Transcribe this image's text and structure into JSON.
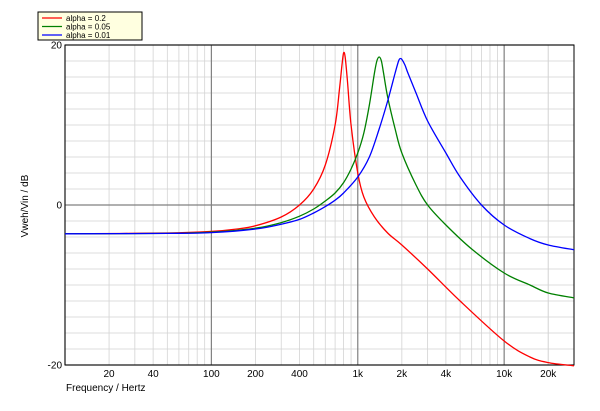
{
  "chart_data": {
    "type": "line",
    "xlabel": "Frequency / Hertz",
    "ylabel": "Vweh/Vin / dB",
    "x_scale": "log",
    "xlim": [
      10,
      30000
    ],
    "ylim": [
      -20,
      20
    ],
    "x_ticks": [
      {
        "value": 20,
        "label": "20"
      },
      {
        "value": 40,
        "label": "40"
      },
      {
        "value": 100,
        "label": "100"
      },
      {
        "value": 200,
        "label": "200"
      },
      {
        "value": 400,
        "label": "400"
      },
      {
        "value": 1000,
        "label": "1k"
      },
      {
        "value": 2000,
        "label": "2k"
      },
      {
        "value": 4000,
        "label": "4k"
      },
      {
        "value": 10000,
        "label": "10k"
      },
      {
        "value": 20000,
        "label": "20k"
      }
    ],
    "y_ticks": [
      {
        "value": 20,
        "label": "20"
      },
      {
        "value": 0,
        "label": "0"
      },
      {
        "value": -20,
        "label": "-20"
      }
    ],
    "grid": true,
    "legend_position": "top-left",
    "series": [
      {
        "name": "alpha = 0.2",
        "color": "#ff0000",
        "points": [
          [
            10,
            -3.6
          ],
          [
            50,
            -3.5
          ],
          [
            100,
            -3.3
          ],
          [
            150,
            -3.0
          ],
          [
            200,
            -2.6
          ],
          [
            300,
            -1.5
          ],
          [
            400,
            0.0
          ],
          [
            500,
            2.0
          ],
          [
            600,
            5.0
          ],
          [
            700,
            10.0
          ],
          [
            750,
            14.5
          ],
          [
            780,
            17.5
          ],
          [
            800,
            19.0
          ],
          [
            820,
            18.5
          ],
          [
            850,
            15.5
          ],
          [
            900,
            10.0
          ],
          [
            1000,
            4.0
          ],
          [
            1100,
            1.0
          ],
          [
            1300,
            -1.5
          ],
          [
            1600,
            -3.5
          ],
          [
            2000,
            -5.0
          ],
          [
            3000,
            -8.0
          ],
          [
            5000,
            -12.0
          ],
          [
            10000,
            -17.0
          ],
          [
            15000,
            -19.0
          ],
          [
            20000,
            -19.7
          ],
          [
            30000,
            -20.1
          ]
        ]
      },
      {
        "name": "alpha = 0.05",
        "color": "#008000",
        "points": [
          [
            10,
            -3.6
          ],
          [
            50,
            -3.55
          ],
          [
            100,
            -3.4
          ],
          [
            200,
            -2.9
          ],
          [
            300,
            -2.2
          ],
          [
            400,
            -1.4
          ],
          [
            500,
            -0.5
          ],
          [
            600,
            0.5
          ],
          [
            700,
            1.5
          ],
          [
            800,
            2.8
          ],
          [
            900,
            4.5
          ],
          [
            1000,
            6.5
          ],
          [
            1100,
            9.0
          ],
          [
            1200,
            12.5
          ],
          [
            1300,
            16.5
          ],
          [
            1350,
            18.0
          ],
          [
            1400,
            18.5
          ],
          [
            1450,
            18.0
          ],
          [
            1500,
            16.5
          ],
          [
            1600,
            13.5
          ],
          [
            1800,
            9.5
          ],
          [
            2000,
            6.5
          ],
          [
            2500,
            2.5
          ],
          [
            3000,
            0.0
          ],
          [
            4000,
            -2.5
          ],
          [
            6000,
            -5.5
          ],
          [
            10000,
            -8.5
          ],
          [
            15000,
            -10.0
          ],
          [
            20000,
            -11.0
          ],
          [
            30000,
            -11.6
          ]
        ]
      },
      {
        "name": "alpha = 0.01",
        "color": "#0000ff",
        "points": [
          [
            10,
            -3.6
          ],
          [
            50,
            -3.55
          ],
          [
            100,
            -3.45
          ],
          [
            200,
            -3.0
          ],
          [
            300,
            -2.4
          ],
          [
            400,
            -1.8
          ],
          [
            500,
            -1.0
          ],
          [
            600,
            -0.2
          ],
          [
            700,
            0.6
          ],
          [
            800,
            1.5
          ],
          [
            1000,
            3.5
          ],
          [
            1200,
            6.0
          ],
          [
            1400,
            9.5
          ],
          [
            1600,
            13.0
          ],
          [
            1800,
            16.5
          ],
          [
            1900,
            18.0
          ],
          [
            1950,
            18.3
          ],
          [
            2000,
            18.2
          ],
          [
            2100,
            17.5
          ],
          [
            2200,
            16.5
          ],
          [
            2500,
            14.0
          ],
          [
            3000,
            10.5
          ],
          [
            4000,
            6.5
          ],
          [
            5000,
            3.5
          ],
          [
            7000,
            0.0
          ],
          [
            10000,
            -2.5
          ],
          [
            15000,
            -4.2
          ],
          [
            20000,
            -5.0
          ],
          [
            30000,
            -5.6
          ]
        ]
      }
    ]
  }
}
